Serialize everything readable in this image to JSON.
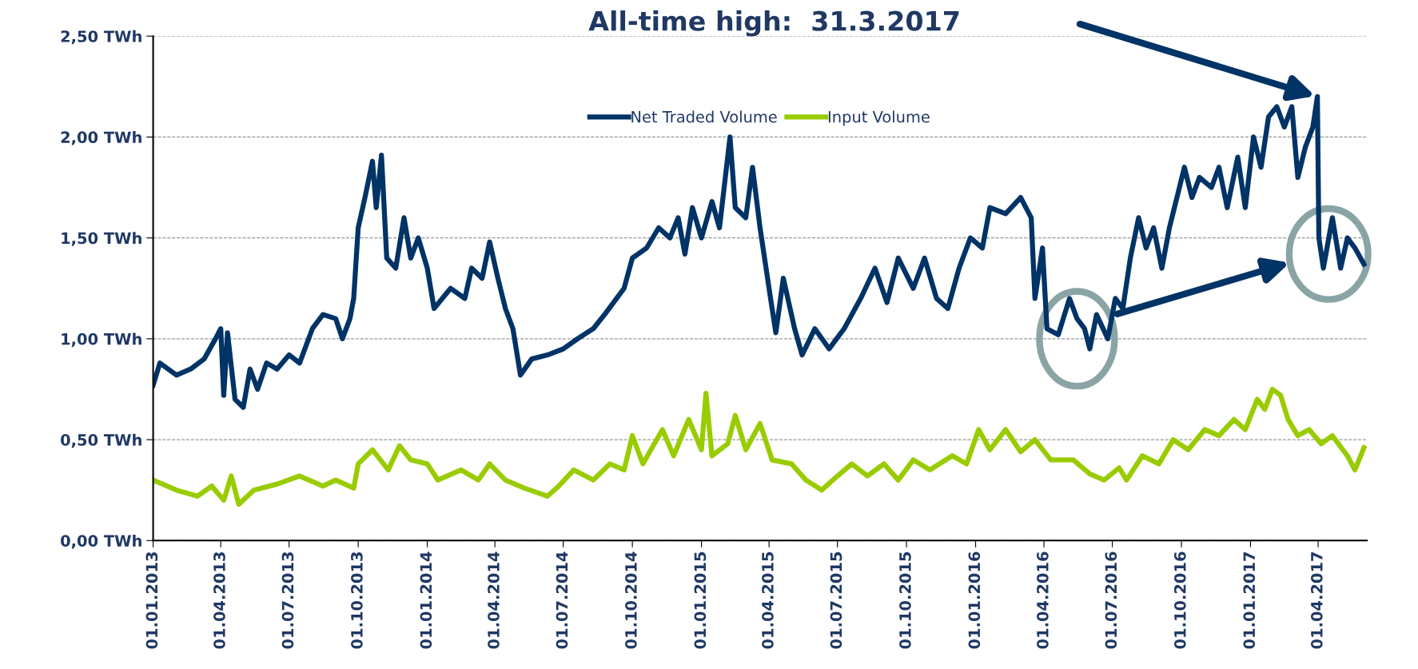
{
  "chart_data": {
    "type": "line",
    "xlim": [
      "2013-01-01",
      "2017-06-05"
    ],
    "xticks": [
      {
        "value": "2013-01-01",
        "label": "01.01.2013"
      },
      {
        "value": "2013-04-01",
        "label": "01.04.2013"
      },
      {
        "value": "2013-07-01",
        "label": "01.07.2013"
      },
      {
        "value": "2013-10-01",
        "label": "01.10.2013"
      },
      {
        "value": "2014-01-01",
        "label": "01.01.2014"
      },
      {
        "value": "2014-04-01",
        "label": "01.04.2014"
      },
      {
        "value": "2014-07-01",
        "label": "01.07.2014"
      },
      {
        "value": "2014-10-01",
        "label": "01.10.2014"
      },
      {
        "value": "2015-01-01",
        "label": "01.01.2015"
      },
      {
        "value": "2015-04-01",
        "label": "01.04.2015"
      },
      {
        "value": "2015-07-01",
        "label": "01.07.2015"
      },
      {
        "value": "2015-10-01",
        "label": "01.10.2015"
      },
      {
        "value": "2016-01-01",
        "label": "01.01.2016"
      },
      {
        "value": "2016-04-01",
        "label": "01.04.2016"
      },
      {
        "value": "2016-07-01",
        "label": "01.07.2016"
      },
      {
        "value": "2016-10-01",
        "label": "01.10.2016"
      },
      {
        "value": "2017-01-01",
        "label": "01.01.2017"
      },
      {
        "value": "2017-04-01",
        "label": "01.04.2017"
      }
    ],
    "ylim": [
      0,
      2.5
    ],
    "yticks": [
      {
        "value": 0,
        "label": "0,00 TWh"
      },
      {
        "value": 0.5,
        "label": "0,50 TWh"
      },
      {
        "value": 1.0,
        "label": "1,00 TWh"
      },
      {
        "value": 1.5,
        "label": "1,50 TWh"
      },
      {
        "value": 2.0,
        "label": "2,00 TWh"
      },
      {
        "value": 2.5,
        "label": "2,50 TWh"
      }
    ],
    "grid": "y",
    "legend": "top",
    "marker": "none",
    "line_style": "solid",
    "annotations": [
      "All-time high:  31.3.2017"
    ],
    "series": [
      {
        "name": "Net Traded Volume",
        "color": "#003366",
        "x": [
          "2013-01-01",
          "2013-01-10",
          "2013-02-01",
          "2013-02-20",
          "2013-03-10",
          "2013-03-25",
          "2013-04-01",
          "2013-04-05",
          "2013-04-10",
          "2013-04-20",
          "2013-05-01",
          "2013-05-10",
          "2013-05-20",
          "2013-06-01",
          "2013-06-15",
          "2013-07-01",
          "2013-07-15",
          "2013-08-01",
          "2013-08-15",
          "2013-09-01",
          "2013-09-10",
          "2013-09-20",
          "2013-09-25",
          "2013-10-01",
          "2013-10-10",
          "2013-10-20",
          "2013-10-25",
          "2013-11-01",
          "2013-11-08",
          "2013-11-20",
          "2013-12-01",
          "2013-12-10",
          "2013-12-20",
          "2014-01-01",
          "2014-01-10",
          "2014-02-01",
          "2014-02-20",
          "2014-03-01",
          "2014-03-15",
          "2014-03-25",
          "2014-04-05",
          "2014-04-15",
          "2014-04-25",
          "2014-05-05",
          "2014-05-20",
          "2014-06-10",
          "2014-07-01",
          "2014-07-20",
          "2014-08-10",
          "2014-08-25",
          "2014-09-10",
          "2014-09-20",
          "2014-10-01",
          "2014-10-20",
          "2014-11-05",
          "2014-11-20",
          "2014-12-01",
          "2014-12-10",
          "2014-12-20",
          "2015-01-01",
          "2015-01-15",
          "2015-01-25",
          "2015-02-08",
          "2015-02-15",
          "2015-03-01",
          "2015-03-10",
          "2015-03-20",
          "2015-04-03",
          "2015-04-10",
          "2015-04-20",
          "2015-05-05",
          "2015-05-15",
          "2015-06-01",
          "2015-06-20",
          "2015-07-10",
          "2015-08-01",
          "2015-08-20",
          "2015-09-05",
          "2015-09-20",
          "2015-10-10",
          "2015-10-25",
          "2015-11-10",
          "2015-11-25",
          "2015-12-10",
          "2015-12-25",
          "2016-01-10",
          "2016-01-20",
          "2016-02-10",
          "2016-03-01",
          "2016-03-15",
          "2016-03-20",
          "2016-03-30",
          "2016-04-05",
          "2016-04-20",
          "2016-05-05",
          "2016-05-15",
          "2016-05-25",
          "2016-06-01",
          "2016-06-10",
          "2016-06-25",
          "2016-07-05",
          "2016-07-15",
          "2016-07-25",
          "2016-08-05",
          "2016-08-15",
          "2016-08-25",
          "2016-09-05",
          "2016-09-15",
          "2016-09-25",
          "2016-10-05",
          "2016-10-15",
          "2016-10-25",
          "2016-11-10",
          "2016-11-20",
          "2016-12-01",
          "2016-12-15",
          "2016-12-25",
          "2017-01-05",
          "2017-01-15",
          "2017-01-25",
          "2017-02-05",
          "2017-02-15",
          "2017-02-25",
          "2017-03-05",
          "2017-03-15",
          "2017-03-25",
          "2017-03-31",
          "2017-04-02",
          "2017-04-08",
          "2017-04-20",
          "2017-05-01",
          "2017-05-10",
          "2017-05-20",
          "2017-06-01"
        ],
        "values": [
          0.77,
          0.88,
          0.82,
          0.85,
          0.9,
          1.0,
          1.05,
          0.72,
          1.03,
          0.7,
          0.66,
          0.85,
          0.75,
          0.88,
          0.85,
          0.92,
          0.88,
          1.05,
          1.12,
          1.1,
          1.0,
          1.1,
          1.2,
          1.55,
          1.7,
          1.88,
          1.65,
          1.91,
          1.4,
          1.35,
          1.6,
          1.4,
          1.5,
          1.35,
          1.15,
          1.25,
          1.2,
          1.35,
          1.3,
          1.48,
          1.3,
          1.15,
          1.05,
          0.82,
          0.9,
          0.92,
          0.95,
          1.0,
          1.05,
          1.12,
          1.2,
          1.25,
          1.4,
          1.45,
          1.55,
          1.5,
          1.6,
          1.42,
          1.65,
          1.5,
          1.68,
          1.55,
          2.0,
          1.65,
          1.6,
          1.85,
          1.55,
          1.2,
          1.03,
          1.3,
          1.05,
          0.92,
          1.05,
          0.95,
          1.05,
          1.2,
          1.35,
          1.18,
          1.4,
          1.25,
          1.4,
          1.2,
          1.15,
          1.35,
          1.5,
          1.45,
          1.65,
          1.62,
          1.7,
          1.6,
          1.2,
          1.45,
          1.05,
          1.02,
          1.2,
          1.1,
          1.05,
          0.95,
          1.12,
          1.0,
          1.2,
          1.15,
          1.4,
          1.6,
          1.45,
          1.55,
          1.35,
          1.55,
          1.7,
          1.85,
          1.7,
          1.8,
          1.75,
          1.85,
          1.65,
          1.9,
          1.65,
          2.0,
          1.85,
          2.1,
          2.15,
          2.05,
          2.15,
          1.8,
          1.95,
          2.05,
          2.2,
          1.5,
          1.35,
          1.6,
          1.35,
          1.5,
          1.45,
          1.37
        ]
      },
      {
        "name": "Input Volume",
        "color": "#99cc00",
        "x": [
          "2013-01-01",
          "2013-02-01",
          "2013-03-01",
          "2013-03-20",
          "2013-04-05",
          "2013-04-15",
          "2013-04-25",
          "2013-05-15",
          "2013-06-15",
          "2013-07-15",
          "2013-08-15",
          "2013-09-01",
          "2013-09-25",
          "2013-10-01",
          "2013-10-20",
          "2013-11-10",
          "2013-11-25",
          "2013-12-10",
          "2014-01-01",
          "2014-01-15",
          "2014-02-15",
          "2014-03-10",
          "2014-03-25",
          "2014-04-15",
          "2014-05-10",
          "2014-06-10",
          "2014-06-25",
          "2014-07-15",
          "2014-08-10",
          "2014-09-01",
          "2014-09-20",
          "2014-10-01",
          "2014-10-15",
          "2014-11-10",
          "2014-11-25",
          "2014-12-15",
          "2015-01-01",
          "2015-01-07",
          "2015-01-15",
          "2015-02-05",
          "2015-02-15",
          "2015-03-01",
          "2015-03-20",
          "2015-04-05",
          "2015-05-01",
          "2015-05-20",
          "2015-06-10",
          "2015-07-01",
          "2015-07-20",
          "2015-08-10",
          "2015-09-01",
          "2015-09-20",
          "2015-10-10",
          "2015-11-01",
          "2015-12-01",
          "2015-12-20",
          "2016-01-05",
          "2016-01-20",
          "2016-02-10",
          "2016-03-01",
          "2016-03-20",
          "2016-04-10",
          "2016-05-10",
          "2016-06-01",
          "2016-06-20",
          "2016-07-10",
          "2016-07-20",
          "2016-08-10",
          "2016-09-01",
          "2016-09-20",
          "2016-10-10",
          "2016-11-01",
          "2016-11-20",
          "2016-12-10",
          "2016-12-25",
          "2017-01-10",
          "2017-01-20",
          "2017-01-30",
          "2017-02-10",
          "2017-02-20",
          "2017-03-05",
          "2017-03-20",
          "2017-04-05",
          "2017-04-20",
          "2017-05-10",
          "2017-05-20",
          "2017-06-01"
        ],
        "values": [
          0.3,
          0.25,
          0.22,
          0.27,
          0.2,
          0.32,
          0.18,
          0.25,
          0.28,
          0.32,
          0.27,
          0.3,
          0.26,
          0.38,
          0.45,
          0.35,
          0.47,
          0.4,
          0.38,
          0.3,
          0.35,
          0.3,
          0.38,
          0.3,
          0.26,
          0.22,
          0.27,
          0.35,
          0.3,
          0.38,
          0.35,
          0.52,
          0.38,
          0.55,
          0.42,
          0.6,
          0.45,
          0.73,
          0.42,
          0.48,
          0.62,
          0.45,
          0.58,
          0.4,
          0.38,
          0.3,
          0.25,
          0.32,
          0.38,
          0.32,
          0.38,
          0.3,
          0.4,
          0.35,
          0.42,
          0.38,
          0.55,
          0.45,
          0.55,
          0.44,
          0.5,
          0.4,
          0.4,
          0.33,
          0.3,
          0.36,
          0.3,
          0.42,
          0.38,
          0.5,
          0.45,
          0.55,
          0.52,
          0.6,
          0.55,
          0.7,
          0.65,
          0.75,
          0.72,
          0.6,
          0.52,
          0.55,
          0.48,
          0.52,
          0.42,
          0.35,
          0.46
        ]
      }
    ]
  }
}
